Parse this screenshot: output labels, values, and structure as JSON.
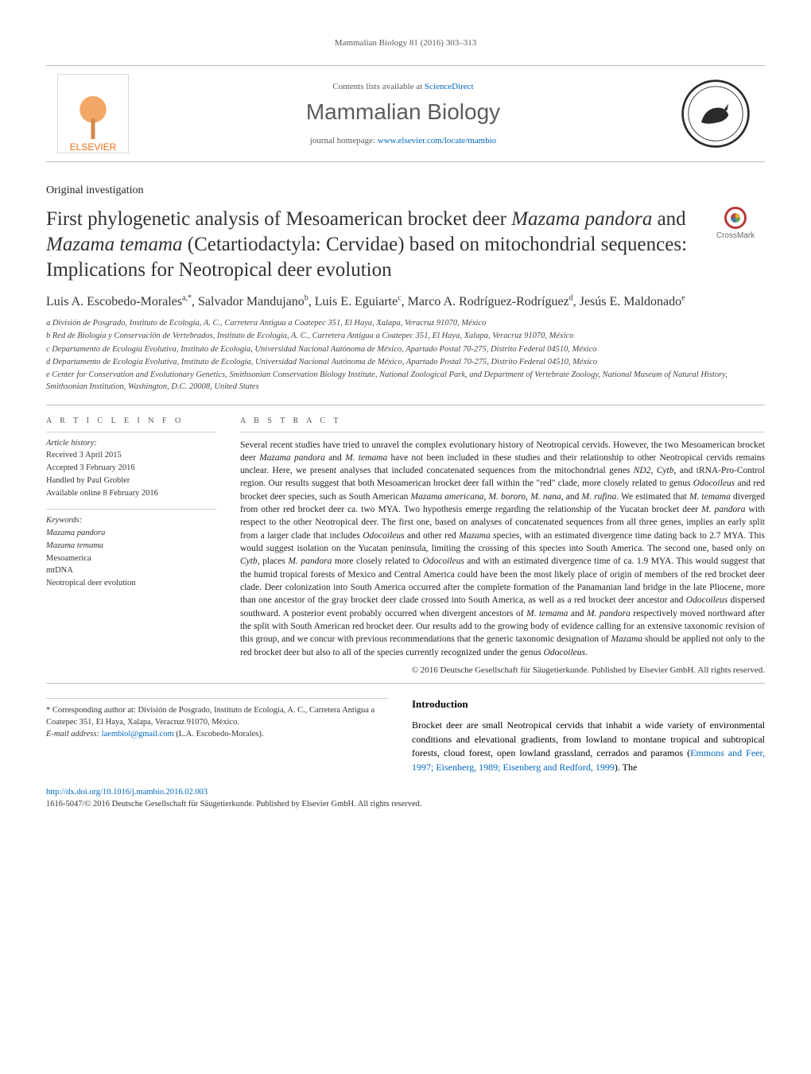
{
  "runningHeader": "Mammalian Biology 81 (2016) 303–313",
  "masthead": {
    "contentsPrefix": "Contents lists available at ",
    "contentsLink": "ScienceDirect",
    "journalName": "Mammalian Biology",
    "homepagePrefix": "journal homepage: ",
    "homepageLink": "www.elsevier.com/locate/mambio",
    "publisherName": "ELSEVIER"
  },
  "articleType": "Original investigation",
  "title": {
    "line1_a": "First phylogenetic analysis of Mesoamerican brocket deer ",
    "line1_b_italic": "Mazama pandora",
    "line1_c": " and ",
    "line1_d_italic": "Mazama temama",
    "line1_e": " (Cetartiodactyla: Cervidae) based on mitochondrial sequences: Implications for Neotropical deer evolution"
  },
  "crossmarkLabel": "CrossMark",
  "authorsHtml": "Luis A. Escobedo-Morales<sup>a,*</sup>, Salvador Mandujano<sup>b</sup>, Luis E. Eguiarte<sup>c</sup>, Marco A. Rodríguez-Rodríguez<sup>d</sup>, Jesús E. Maldonado<sup>e</sup>",
  "affiliations": [
    "a  División de Posgrado, Instituto de Ecología, A. C., Carretera Antigua a Coatepec 351, El Haya, Xalapa, Veracruz 91070, México",
    "b  Red de Biología y Conservación de Vertebrados, Instituto de Ecología, A. C., Carretera Antigua a Coatepec 351, El Haya, Xalapa, Veracruz 91070, México",
    "c  Departamento de Ecología Evolutiva, Instituto de Ecología, Universidad Nacional Autónoma de México, Apartado Postal 70-275, Distrito Federal 04510, México",
    "d  Departamento de Ecología Evolutiva, Instituto de Ecología, Universidad Nacional Autónoma de México, Apartado Postal 70-275, Distrito Federal 04510, México",
    "e  Center for Conservation and Evolutionary Genetics, Smithsonian Conservation Biology Institute, National Zoological Park, and Department of Vertebrate Zoology, National Museum of Natural History, Smithsonian Institution, Washington, D.C. 20008, United States"
  ],
  "articleInfo": {
    "heading": "a r t i c l e   i n f o",
    "historyLabel": "Article history:",
    "history": [
      "Received 3 April 2015",
      "Accepted 3 February 2016",
      "Handled by Paul Grobler",
      "Available online 8 February 2016"
    ],
    "keywordsLabel": "Keywords:",
    "keywords": [
      "Mazama pandora",
      "Mazama temama",
      "Mesoamerica",
      "mtDNA",
      "Neotropical deer evolution"
    ]
  },
  "abstract": {
    "heading": "a b s t r a c t",
    "body": "Several recent studies have tried to unravel the complex evolutionary history of Neotropical cervids. However, the two Mesoamerican brocket deer <i>Mazama pandora</i> and <i>M. temama</i> have not been included in these studies and their relationship to other Neotropical cervids remains unclear. Here, we present analyses that included concatenated sequences from the mitochondrial genes <i>ND2</i>, <i>Cytb</i>, and tRNA-Pro-Control region. Our results suggest that both Mesoamerican brocket deer fall within the \"red\" clade, more closely related to genus <i>Odocoileus</i> and red brocket deer species, such as South American <i>Mazama americana</i>, <i>M. bororo</i>, <i>M. nana</i>, and <i>M. rufina</i>. We estimated that <i>M. temama</i> diverged from other red brocket deer ca. two MYA. Two hypothesis emerge regarding the relationship of the Yucatan brocket deer <i>M. pandora</i> with respect to the other Neotropical deer. The first one, based on analyses of concatenated sequences from all three genes, implies an early split from a larger clade that includes <i>Odocoileus</i> and other red <i>Mazama</i> species, with an estimated divergence time dating back to 2.7 MYA. This would suggest isolation on the Yucatan peninsula, limiting the crossing of this species into South America. The second one, based only on <i>Cytb</i>, places <i>M. pandora</i> more closely related to <i>Odocoileus</i> and with an estimated divergence time of ca. 1.9 MYA. This would suggest that the humid tropical forests of Mexico and Central America could have been the most likely place of origin of members of the red brocket deer clade. Deer colonization into South America occurred after the complete formation of the Panamanian land bridge in the late Pliocene, more than one ancestor of the gray brocket deer clade crossed into South America, as well as a red brocket deer ancestor and <i>Odocoileus</i> dispersed southward. A posterior event probably occurred when divergent ancestors of <i>M. temama</i> and <i>M. pandora</i> respectively moved northward after the split with South American red brocket deer. Our results add to the growing body of evidence calling for an extensive taxonomic revision of this group, and we concur with previous recommendations that the generic taxonomic designation of <i>Mazama</i> should be applied not only to the red brocket deer but also to all of the species currently recognized under the genus <i>Odocoileus</i>.",
    "copyright": "© 2016  Deutsche Gesellschaft für Säugetierkunde. Published by Elsevier GmbH. All rights reserved."
  },
  "corresponding": {
    "star": "* ",
    "text1": "Corresponding author at: División de Posgrado, Instituto de Ecología, A. C., Carretera Antigua a Coatepec 351, El Haya, Xalapa, Veracruz 91070, México.",
    "emailLabel": "E-mail address: ",
    "email": "laembiol@gmail.com",
    "emailWho": " (L.A. Escobedo-Morales)."
  },
  "introduction": {
    "heading": "Introduction",
    "body": "Brocket deer are small Neotropical cervids that inhabit a wide variety of environmental conditions and elevational gradients, from lowland to montane tropical and subtropical forests, cloud forest, open lowland grassland, cerrados and paramos (",
    "citation": "Emmons and Feer, 1997; Eisenberg, 1989; Eisenberg and Redford, 1999",
    "tail": "). The"
  },
  "footer": {
    "doi": "http://dx.doi.org/10.1016/j.mambio.2016.02.003",
    "issnLine": "1616-5047/© 2016  Deutsche Gesellschaft für Säugetierkunde. Published by Elsevier GmbH. All rights reserved."
  },
  "styling": {
    "pageWidthPx": 1020,
    "pageHeightPx": 1351,
    "accentLinkColor": "#0066c0",
    "textColor": "#000000",
    "mutedTextColor": "#5a5a5a",
    "ruleColor": "#bcbcbc",
    "elsevierOrange": "#e8711a",
    "crossmarkRed": "#b83a3a",
    "bodyFontFamily": "Georgia, 'Times New Roman', serif",
    "journalFontFamily": "Arial, sans-serif",
    "titleFontSizePx": 25,
    "journalNameFontSizePx": 28,
    "abstractFontSizePx": 11.5,
    "layout": {
      "infoColWidthPx": 214,
      "twoColGapPx": 30
    }
  }
}
